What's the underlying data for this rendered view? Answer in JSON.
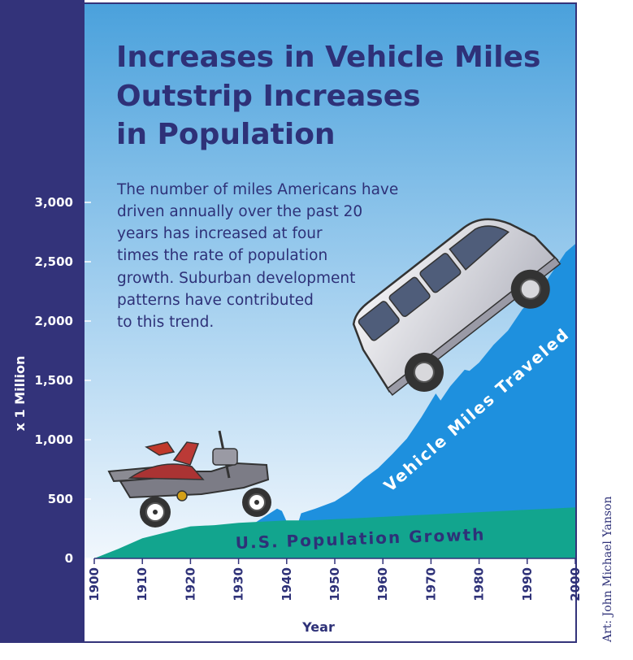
{
  "colors": {
    "navy": "#33337a",
    "sky_top": "#4aa1dc",
    "sky_bottom": "#f1f7fd",
    "vmt_area": "#1e90de",
    "pop_area": "#12a58e",
    "text_navy": "#2e3178"
  },
  "chart_data": {
    "type": "area",
    "title": "Increases in Vehicle Miles Outstrip Increases in Population",
    "title_lines": [
      "Increases in Vehicle Miles",
      "Outstrip Increases",
      "in Population"
    ],
    "description_lines": [
      "The number of miles Americans have",
      "driven annually over the past 20",
      "years has increased at four",
      "times the rate of population",
      "growth. Suburban development",
      "patterns have contributed",
      "to this trend."
    ],
    "ylabel": "x 1 Million",
    "xlabel": "Year",
    "ylim": [
      0,
      3000
    ],
    "xlim": [
      1900,
      2000
    ],
    "y_ticks": [
      0,
      500,
      1000,
      1500,
      2000,
      2500,
      3000
    ],
    "y_tick_labels": [
      "0",
      "500",
      "1,000",
      "1,500",
      "2,000",
      "2,500",
      "3,000"
    ],
    "x_ticks": [
      1900,
      1910,
      1920,
      1930,
      1940,
      1950,
      1960,
      1970,
      1980,
      1990,
      2000
    ],
    "x_tick_labels": [
      "1900",
      "1910",
      "1920",
      "1930",
      "1940",
      "1950",
      "1960",
      "1970",
      "1980",
      "1990",
      "2000"
    ],
    "series": [
      {
        "name": "Vehicle Miles Traveled",
        "x": [
          1933,
          1938,
          1939,
          1940,
          1941,
          1942,
          1943,
          1946,
          1950,
          1953,
          1956,
          1959,
          1962,
          1965,
          1968,
          1971,
          1972,
          1974,
          1977,
          1978,
          1980,
          1983,
          1986,
          1989,
          1992,
          1995,
          1998,
          2000
        ],
        "values": [
          290,
          420,
          400,
          310,
          270,
          250,
          380,
          420,
          480,
          560,
          670,
          760,
          880,
          1010,
          1190,
          1390,
          1330,
          1450,
          1590,
          1580,
          1650,
          1800,
          1920,
          2100,
          2220,
          2400,
          2580,
          2650
        ]
      },
      {
        "name": "U.S. Population Growth",
        "x": [
          1900,
          1905,
          1910,
          1915,
          1920,
          1925,
          1930,
          1935,
          1940,
          1945,
          1950,
          1955,
          1960,
          1965,
          1970,
          1975,
          1980,
          1985,
          1990,
          1995,
          2000
        ],
        "values": [
          0,
          80,
          170,
          220,
          270,
          280,
          300,
          310,
          320,
          320,
          330,
          340,
          350,
          360,
          370,
          380,
          390,
          400,
          410,
          420,
          430
        ]
      }
    ]
  },
  "area_labels": {
    "vmt": "Vehicle Miles Traveled",
    "population": "U.S. Population Growth"
  },
  "credit": "Art: John Michael Yanson"
}
